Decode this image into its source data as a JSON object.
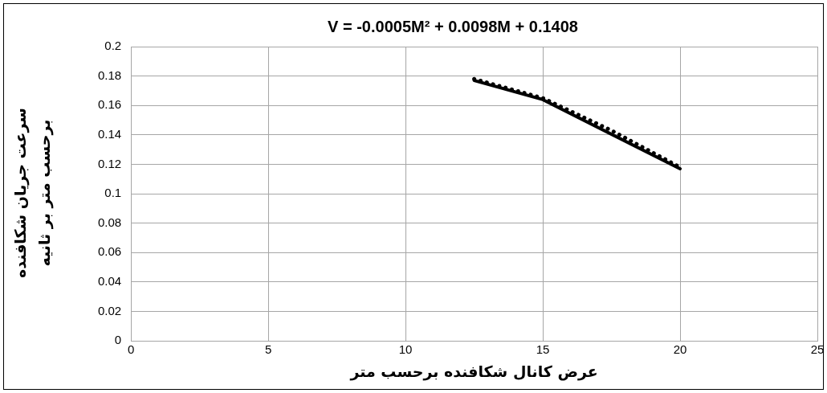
{
  "chart_data": {
    "type": "line",
    "title": "V = -0.0005M² + 0.0098M + 0.1408",
    "xlabel": "عرض کانال شکافنده برحسب متر",
    "ylabel": "سرعت جریان شکافنده برحسب متر بر ثانیه",
    "xlim": [
      0,
      25
    ],
    "xticks": [
      0,
      5,
      10,
      15,
      20,
      25
    ],
    "ylim": [
      0,
      0.2
    ],
    "yticks": [
      0,
      0.02,
      0.04,
      0.06,
      0.08,
      0.1,
      0.12,
      0.14,
      0.16,
      0.18,
      0.2
    ],
    "grid": true,
    "legend": false,
    "marker": "none",
    "series": [
      {
        "color": "#000000",
        "x": [
          12.5,
          15,
          20
        ],
        "values": [
          0.177,
          0.164,
          0.117
        ],
        "line_style": "solid"
      },
      {
        "color": "#000000",
        "x": [
          12.5,
          15,
          17.5,
          20
        ],
        "values": [
          0.178,
          0.165,
          0.143,
          0.118
        ],
        "line_style": "dotted"
      }
    ]
  }
}
